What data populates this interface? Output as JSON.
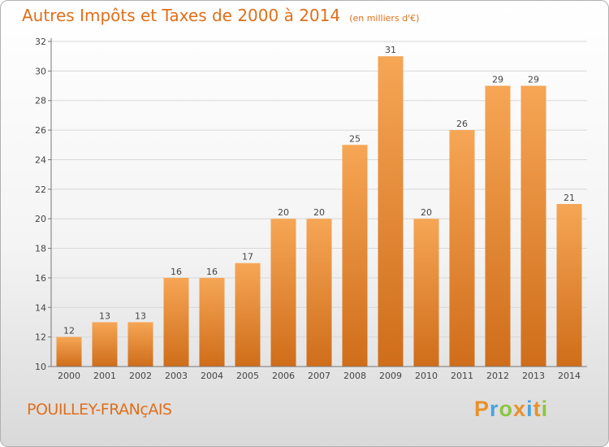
{
  "header": {
    "title": "Autres Impôts et Taxes de 2000 à 2014",
    "unit": "(en milliers d'€)"
  },
  "footer": {
    "commune": "POUILLEY-FRANçAIS",
    "logo": {
      "text": "Proxiti",
      "letter_colors": [
        "#e8922b",
        "#4aa3df",
        "#8cc63f",
        "#e8922b",
        "#4aa3df",
        "#e8922b",
        "#8cc63f"
      ]
    }
  },
  "colors": {
    "bar_light": "#f6a655",
    "bar_dark": "#cf6d1a",
    "text_orange": "#e06f1a",
    "axis": "#777777",
    "grid": "#d8d8d8"
  },
  "chart_data": {
    "type": "bar",
    "categories": [
      "2000",
      "2001",
      "2002",
      "2003",
      "2004",
      "2005",
      "2006",
      "2007",
      "2008",
      "2009",
      "2010",
      "2011",
      "2012",
      "2013",
      "2014"
    ],
    "values": [
      12,
      13,
      13,
      16,
      16,
      17,
      20,
      20,
      25,
      31,
      20,
      26,
      29,
      29,
      21
    ],
    "title": "Autres Impôts et Taxes de 2000 à 2014",
    "ylim": [
      10,
      32
    ],
    "yticks": [
      10,
      12,
      14,
      16,
      18,
      20,
      22,
      24,
      26,
      28,
      30,
      32
    ],
    "grid": "horizontal",
    "data_labels": true
  }
}
